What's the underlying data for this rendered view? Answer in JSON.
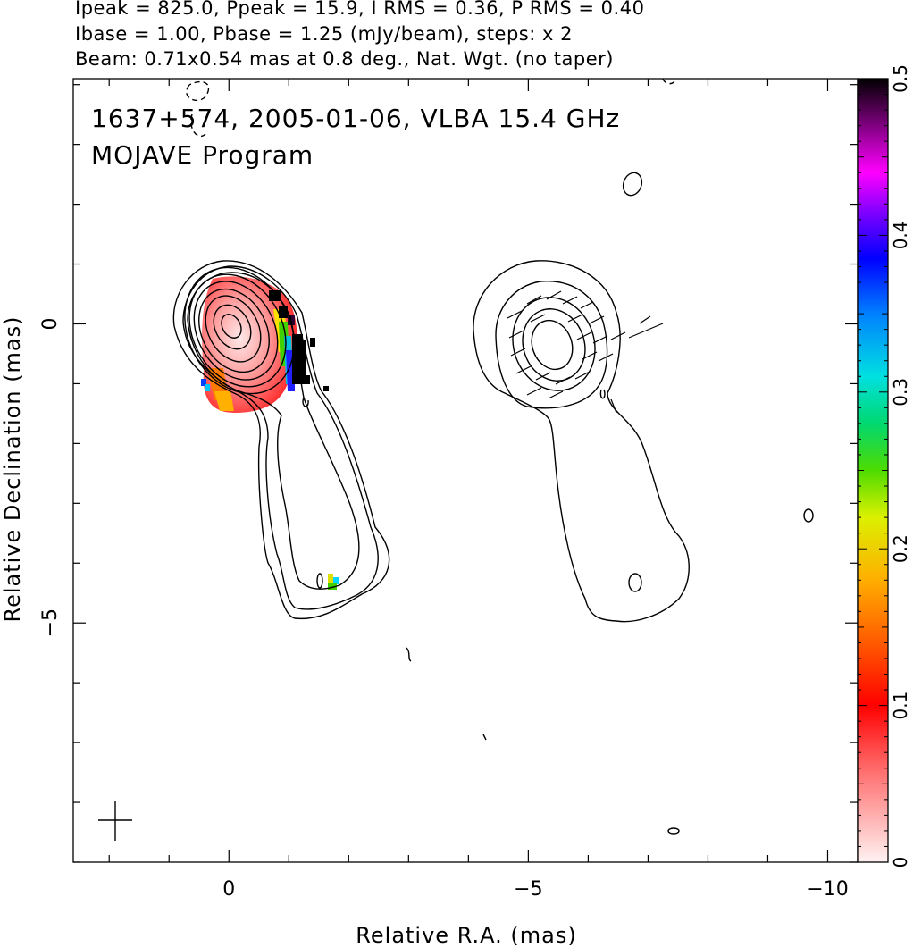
{
  "header": {
    "line1": "Ipeak = 825.0, Ppeak = 15.9, I RMS = 0.36, P RMS = 0.40",
    "line2": "Ibase = 1.00, Pbase = 1.25 (mJy/beam), steps: x 2",
    "line3": "Beam: 0.71x0.54 mas at 0.8 deg., Nat. Wgt. (no taper)"
  },
  "chart_data": {
    "type": "heatmap",
    "title": "1637+574, 2005-01-06, VLBA 15.4 GHz",
    "subtitle": "MOJAVE Program",
    "xlabel": "Relative R.A. (mas)",
    "ylabel": "Relative Declination (mas)",
    "xlim": [
      2.6,
      -10.5
    ],
    "ylim": [
      -9.0,
      4.1
    ],
    "x_ticks": [
      0,
      -5,
      -10
    ],
    "x_tick_labels": [
      "0",
      "−5",
      "−10"
    ],
    "y_ticks": [
      0,
      -5
    ],
    "y_tick_labels": [
      "0",
      "−5"
    ],
    "colorbar": {
      "range": [
        0,
        0.5
      ],
      "ticks": [
        0,
        0.1,
        0.2,
        0.3,
        0.4,
        0.5
      ],
      "tick_labels": [
        "0",
        "0.1",
        "0.2",
        "0.3",
        "0.4",
        "0.5"
      ]
    },
    "intensity_peak_mJy_per_beam": 825.0,
    "polarization_peak_mJy_per_beam": 15.9,
    "intensity_rms": 0.36,
    "polarization_rms": 0.4,
    "intensity_base": 1.0,
    "polarization_base": 1.25,
    "contour_step_factor": 2,
    "beam": {
      "major_mas": 0.71,
      "minor_mas": 0.54,
      "pa_deg": 0.8
    },
    "weighting": "Natural (no taper)",
    "left_panel": "total intensity contours with fractional polarization color",
    "right_panel": "polarized intensity contours with EVPA ticks, offset to R.A. -5"
  }
}
